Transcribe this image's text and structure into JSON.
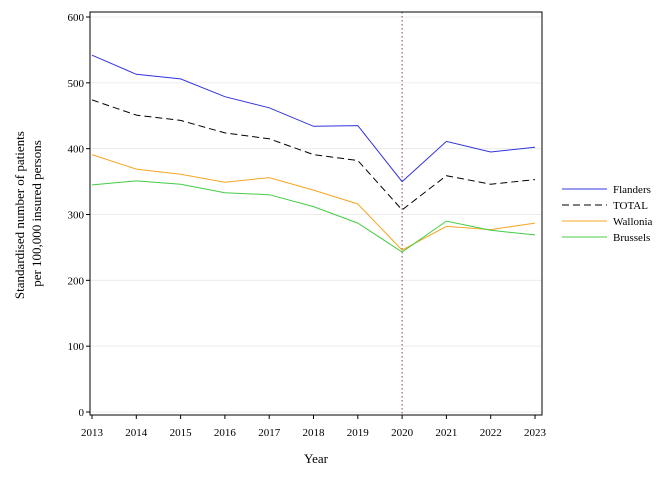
{
  "chart_data": {
    "type": "line",
    "xlabel": "Year",
    "ylabel": [
      "Standardised number of patients",
      "per 100,000 insured persons"
    ],
    "xlim": [
      2013,
      2023
    ],
    "ylim": [
      0,
      600
    ],
    "x": [
      2013,
      2014,
      2015,
      2016,
      2017,
      2018,
      2019,
      2020,
      2021,
      2022,
      2023
    ],
    "x_ticks": [
      "2013",
      "2014",
      "2015",
      "2016",
      "2017",
      "2018",
      "2019",
      "2020",
      "2021",
      "2022",
      "2023"
    ],
    "y_ticks": [
      "0",
      "100",
      "200",
      "300",
      "400",
      "500",
      "600"
    ],
    "grid": true,
    "reference_line_x": 2020,
    "legend_position": "right",
    "series": [
      {
        "name": "Flanders",
        "color": "#3333dd",
        "dash": "solid",
        "values": [
          542,
          513,
          506,
          479,
          462,
          434,
          435,
          350,
          411,
          395,
          402
        ]
      },
      {
        "name": "TOTAL",
        "color": "#000000",
        "dash": "dashed",
        "values": [
          474,
          451,
          443,
          424,
          415,
          391,
          382,
          307,
          359,
          346,
          353
        ]
      },
      {
        "name": "Wallonia",
        "color": "#f5a623",
        "dash": "solid",
        "values": [
          391,
          369,
          361,
          349,
          356,
          337,
          316,
          246,
          282,
          277,
          287
        ]
      },
      {
        "name": "Brussels",
        "color": "#44cc44",
        "dash": "solid",
        "values": [
          345,
          351,
          346,
          333,
          330,
          312,
          287,
          243,
          290,
          276,
          269
        ]
      }
    ]
  }
}
